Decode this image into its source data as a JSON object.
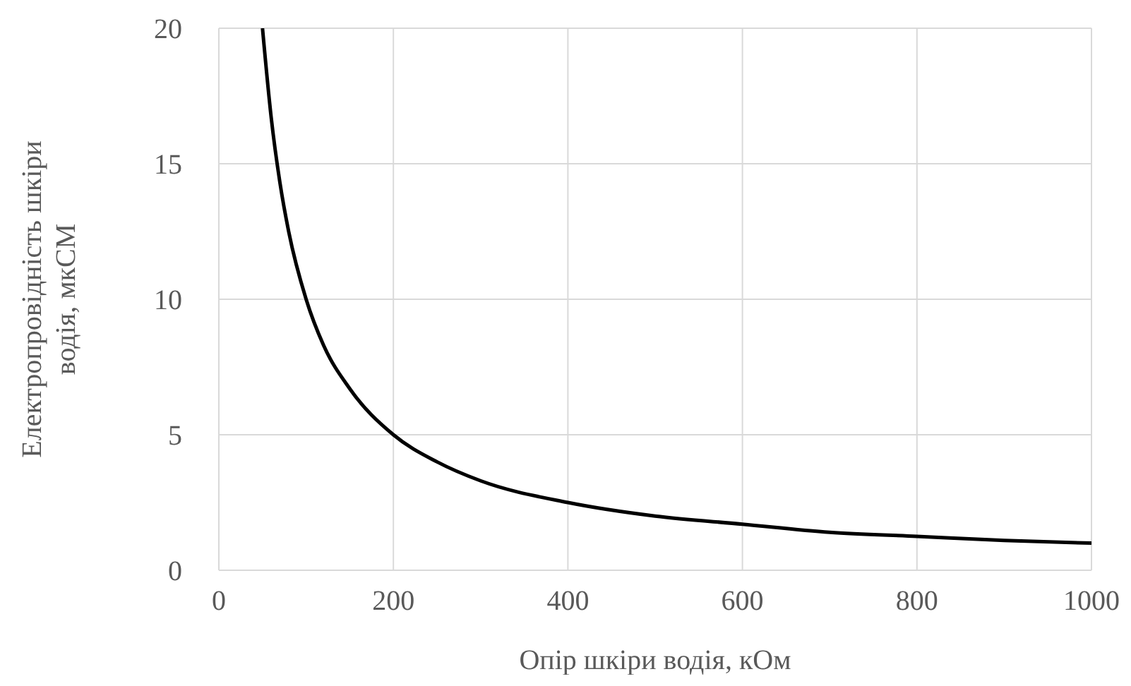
{
  "chart_data": {
    "type": "line",
    "xlabel": "Опір шкіри водія, кОм",
    "ylabel": "Електропровідність шкіри\nводія, мкСМ",
    "x": [
      50,
      60,
      70,
      80,
      100,
      120,
      150,
      200,
      250,
      300,
      400,
      500,
      600,
      700,
      800,
      900,
      1000
    ],
    "series": [
      {
        "color": "#000000",
        "values": [
          20,
          16.7,
          14.3,
          12.5,
          10,
          8.3,
          6.7,
          5,
          4,
          3.3,
          2.5,
          2,
          1.7,
          1.4,
          1.25,
          1.1,
          1
        ]
      }
    ],
    "xlim": [
      0,
      1000
    ],
    "xticks": [
      0,
      200,
      400,
      600,
      800,
      1000
    ],
    "ylim": [
      0,
      20
    ],
    "yticks": [
      0,
      5,
      10,
      15,
      20
    ],
    "grid": true,
    "marker": "none",
    "line_style": "solid",
    "legend": false
  }
}
